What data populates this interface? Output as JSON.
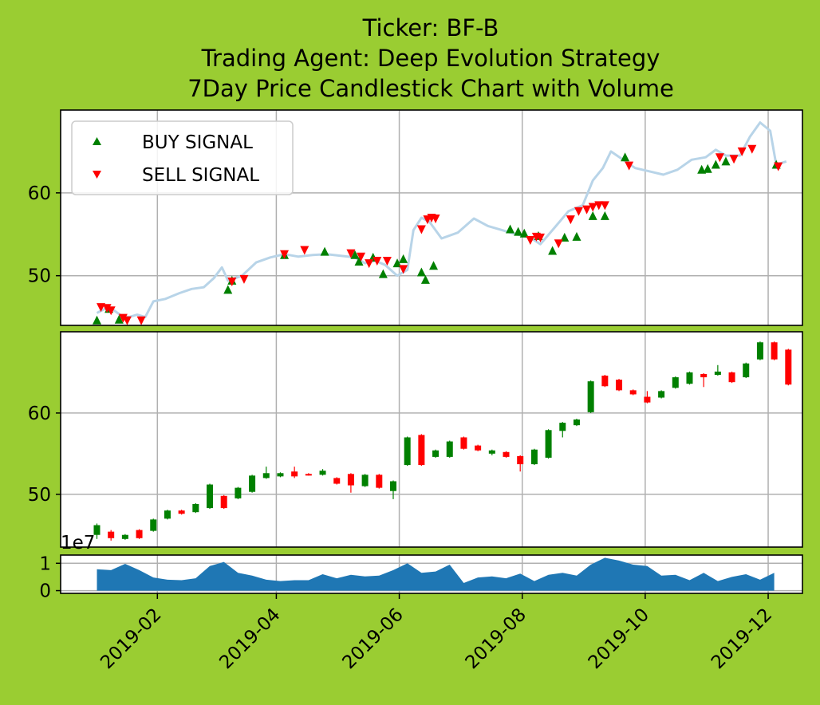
{
  "title_lines": [
    "Ticker: BF-B",
    "Trading Agent: Deep Evolution Strategy",
    "7Day Price Candlestick Chart with Volume"
  ],
  "legend": {
    "buy": "BUY SIGNAL",
    "sell": "SELL SIGNAL"
  },
  "volume_offset_label": "1e7",
  "colors": {
    "background": "#9acd32",
    "buy": "#008000",
    "sell": "#ff0000",
    "price_line": "#b8d4e8",
    "volume": "#1f77b4",
    "grid": "#b0b0b0"
  },
  "chart_data": {
    "type": "candlestick",
    "x_range": [
      "2018-12-15",
      "2019-12-18"
    ],
    "x_ticks": [
      "2019-02",
      "2019-04",
      "2019-06",
      "2019-08",
      "2019-10",
      "2019-12"
    ],
    "price_panel": {
      "ylim": [
        44,
        70
      ],
      "y_ticks": [
        50,
        60
      ],
      "price_line": [
        [
          "2019-01-02",
          45.5
        ],
        [
          "2019-01-06",
          46.0
        ],
        [
          "2019-01-10",
          45.9
        ],
        [
          "2019-01-14",
          45.2
        ],
        [
          "2019-01-18",
          45.0
        ],
        [
          "2019-01-22",
          45.3
        ],
        [
          "2019-01-26",
          45.0
        ],
        [
          "2019-01-30",
          46.9
        ],
        [
          "2019-02-05",
          47.2
        ],
        [
          "2019-02-12",
          47.9
        ],
        [
          "2019-02-18",
          48.4
        ],
        [
          "2019-02-24",
          48.6
        ],
        [
          "2019-03-01",
          49.7
        ],
        [
          "2019-03-05",
          51.0
        ],
        [
          "2019-03-08",
          49.4
        ],
        [
          "2019-03-15",
          50.0
        ],
        [
          "2019-03-22",
          51.6
        ],
        [
          "2019-03-29",
          52.2
        ],
        [
          "2019-04-05",
          52.6
        ],
        [
          "2019-04-12",
          52.3
        ],
        [
          "2019-04-19",
          52.5
        ],
        [
          "2019-04-26",
          52.6
        ],
        [
          "2019-05-03",
          52.4
        ],
        [
          "2019-05-10",
          52.2
        ],
        [
          "2019-05-15",
          51.5
        ],
        [
          "2019-05-20",
          51.8
        ],
        [
          "2019-05-25",
          51.3
        ],
        [
          "2019-05-31",
          50.0
        ],
        [
          "2019-06-05",
          50.7
        ],
        [
          "2019-06-08",
          55.5
        ],
        [
          "2019-06-12",
          57.0
        ],
        [
          "2019-06-16",
          56.5
        ],
        [
          "2019-06-22",
          54.5
        ],
        [
          "2019-06-30",
          55.2
        ],
        [
          "2019-07-08",
          56.9
        ],
        [
          "2019-07-15",
          56.0
        ],
        [
          "2019-07-22",
          55.5
        ],
        [
          "2019-07-29",
          55.0
        ],
        [
          "2019-08-05",
          54.6
        ],
        [
          "2019-08-10",
          53.8
        ],
        [
          "2019-08-17",
          55.8
        ],
        [
          "2019-08-24",
          57.8
        ],
        [
          "2019-08-31",
          58.5
        ],
        [
          "2019-09-05",
          61.5
        ],
        [
          "2019-09-10",
          63.0
        ],
        [
          "2019-09-14",
          65.0
        ],
        [
          "2019-09-20",
          64.0
        ],
        [
          "2019-09-26",
          63.0
        ],
        [
          "2019-10-03",
          62.6
        ],
        [
          "2019-10-10",
          62.2
        ],
        [
          "2019-10-17",
          62.8
        ],
        [
          "2019-10-24",
          64.0
        ],
        [
          "2019-10-31",
          64.3
        ],
        [
          "2019-11-05",
          65.2
        ],
        [
          "2019-11-10",
          64.5
        ],
        [
          "2019-11-17",
          64.5
        ],
        [
          "2019-11-22",
          66.8
        ],
        [
          "2019-11-27",
          68.5
        ],
        [
          "2019-12-02",
          67.5
        ],
        [
          "2019-12-05",
          63.4
        ],
        [
          "2019-12-10",
          63.8
        ]
      ],
      "buy_signals": [
        [
          "2019-01-02",
          44.6
        ],
        [
          "2019-01-08",
          46.0
        ],
        [
          "2019-01-13",
          44.7
        ],
        [
          "2019-03-08",
          48.3
        ],
        [
          "2019-03-10",
          49.4
        ],
        [
          "2019-04-05",
          52.5
        ],
        [
          "2019-04-25",
          52.9
        ],
        [
          "2019-05-10",
          52.5
        ],
        [
          "2019-05-12",
          51.7
        ],
        [
          "2019-05-19",
          52.2
        ],
        [
          "2019-05-24",
          50.2
        ],
        [
          "2019-05-31",
          51.5
        ],
        [
          "2019-06-03",
          52.0
        ],
        [
          "2019-06-12",
          50.4
        ],
        [
          "2019-06-14",
          49.5
        ],
        [
          "2019-06-18",
          51.2
        ],
        [
          "2019-07-26",
          55.6
        ],
        [
          "2019-07-30",
          55.3
        ],
        [
          "2019-08-02",
          55.1
        ],
        [
          "2019-08-09",
          54.8
        ],
        [
          "2019-08-16",
          53.0
        ],
        [
          "2019-08-22",
          54.6
        ],
        [
          "2019-08-28",
          54.7
        ],
        [
          "2019-09-05",
          57.2
        ],
        [
          "2019-09-11",
          57.2
        ],
        [
          "2019-09-21",
          64.3
        ],
        [
          "2019-10-29",
          62.8
        ],
        [
          "2019-11-01",
          62.9
        ],
        [
          "2019-11-05",
          63.4
        ],
        [
          "2019-11-10",
          63.8
        ],
        [
          "2019-12-05",
          63.4
        ]
      ],
      "sell_signals": [
        [
          "2019-01-04",
          46.2
        ],
        [
          "2019-01-07",
          46.1
        ],
        [
          "2019-01-09",
          45.8
        ],
        [
          "2019-01-15",
          44.9
        ],
        [
          "2019-01-17",
          44.6
        ],
        [
          "2019-01-24",
          44.6
        ],
        [
          "2019-03-10",
          49.3
        ],
        [
          "2019-03-16",
          49.6
        ],
        [
          "2019-04-05",
          52.6
        ],
        [
          "2019-04-15",
          53.1
        ],
        [
          "2019-05-08",
          52.7
        ],
        [
          "2019-05-13",
          52.3
        ],
        [
          "2019-05-17",
          51.5
        ],
        [
          "2019-05-21",
          51.8
        ],
        [
          "2019-05-26",
          51.8
        ],
        [
          "2019-06-03",
          50.8
        ],
        [
          "2019-06-12",
          55.6
        ],
        [
          "2019-06-15",
          56.8
        ],
        [
          "2019-06-17",
          57.0
        ],
        [
          "2019-06-19",
          56.9
        ],
        [
          "2019-08-05",
          54.3
        ],
        [
          "2019-08-08",
          54.7
        ],
        [
          "2019-08-10",
          54.6
        ],
        [
          "2019-08-19",
          53.9
        ],
        [
          "2019-08-25",
          56.8
        ],
        [
          "2019-08-29",
          57.8
        ],
        [
          "2019-09-02",
          58.0
        ],
        [
          "2019-09-05",
          58.3
        ],
        [
          "2019-09-08",
          58.5
        ],
        [
          "2019-09-11",
          58.5
        ],
        [
          "2019-09-23",
          63.3
        ],
        [
          "2019-11-07",
          64.3
        ],
        [
          "2019-11-14",
          64.1
        ],
        [
          "2019-11-18",
          65.0
        ],
        [
          "2019-11-23",
          65.3
        ],
        [
          "2019-12-06",
          63.2
        ]
      ]
    },
    "candle_panel": {
      "ylim": [
        43.5,
        70
      ],
      "y_ticks": [
        50,
        60
      ],
      "candles": [
        [
          "2019-01-02",
          45.0,
          46.2,
          44.5,
          46.4
        ],
        [
          "2019-01-09",
          45.4,
          44.6,
          44.3,
          45.6
        ],
        [
          "2019-01-16",
          44.5,
          45.0,
          44.4,
          45.1
        ],
        [
          "2019-01-23",
          45.6,
          44.6,
          44.5,
          45.7
        ],
        [
          "2019-01-30",
          45.5,
          46.9,
          45.4,
          47.0
        ],
        [
          "2019-02-06",
          47.0,
          48.0,
          46.9,
          48.1
        ],
        [
          "2019-02-13",
          48.0,
          47.6,
          47.5,
          48.1
        ],
        [
          "2019-02-20",
          47.8,
          48.8,
          47.7,
          48.9
        ],
        [
          "2019-02-27",
          48.3,
          51.2,
          48.2,
          51.3
        ],
        [
          "2019-03-06",
          49.8,
          48.3,
          48.2,
          49.9
        ],
        [
          "2019-03-13",
          49.5,
          50.8,
          49.4,
          50.9
        ],
        [
          "2019-03-20",
          50.3,
          52.3,
          50.2,
          52.4
        ],
        [
          "2019-03-27",
          52.0,
          52.6,
          51.9,
          53.4
        ],
        [
          "2019-04-03",
          52.2,
          52.6,
          52.1,
          52.7
        ],
        [
          "2019-04-10",
          52.8,
          52.2,
          52.0,
          53.4
        ],
        [
          "2019-04-17",
          52.5,
          52.4,
          52.3,
          52.6
        ],
        [
          "2019-04-24",
          52.4,
          52.9,
          52.3,
          53.1
        ],
        [
          "2019-05-01",
          52.0,
          51.3,
          51.2,
          52.1
        ],
        [
          "2019-05-08",
          52.5,
          51.1,
          50.2,
          52.6
        ],
        [
          "2019-05-15",
          51.0,
          52.4,
          50.9,
          52.5
        ],
        [
          "2019-05-22",
          52.4,
          50.8,
          50.7,
          52.5
        ],
        [
          "2019-05-29",
          50.4,
          51.6,
          49.4,
          51.7
        ],
        [
          "2019-06-05",
          53.6,
          57.0,
          53.5,
          57.1
        ],
        [
          "2019-06-12",
          57.3,
          53.6,
          53.5,
          57.4
        ],
        [
          "2019-06-19",
          54.6,
          55.4,
          54.5,
          55.5
        ],
        [
          "2019-06-26",
          54.6,
          56.5,
          54.5,
          56.6
        ],
        [
          "2019-07-03",
          57.0,
          55.6,
          55.5,
          57.1
        ],
        [
          "2019-07-10",
          56.0,
          55.4,
          55.3,
          56.1
        ],
        [
          "2019-07-17",
          55.0,
          55.4,
          54.8,
          55.5
        ],
        [
          "2019-07-24",
          55.2,
          54.6,
          54.5,
          55.3
        ],
        [
          "2019-07-31",
          54.7,
          53.7,
          52.8,
          54.8
        ],
        [
          "2019-08-07",
          53.7,
          55.5,
          53.6,
          55.6
        ],
        [
          "2019-08-14",
          54.5,
          57.9,
          54.4,
          58.0
        ],
        [
          "2019-08-21",
          57.8,
          58.8,
          57.0,
          58.9
        ],
        [
          "2019-08-28",
          58.5,
          59.2,
          58.4,
          59.3
        ],
        [
          "2019-09-04",
          60.1,
          63.9,
          60.0,
          64.0
        ],
        [
          "2019-09-11",
          64.6,
          63.3,
          63.2,
          64.7
        ],
        [
          "2019-09-18",
          64.1,
          62.8,
          62.7,
          64.2
        ],
        [
          "2019-09-25",
          62.8,
          62.3,
          62.2,
          62.9
        ],
        [
          "2019-10-02",
          62.0,
          61.3,
          61.2,
          62.7
        ],
        [
          "2019-10-09",
          61.9,
          62.7,
          61.8,
          62.8
        ],
        [
          "2019-10-16",
          63.1,
          64.4,
          63.0,
          64.5
        ],
        [
          "2019-10-23",
          63.6,
          65.0,
          63.5,
          65.1
        ],
        [
          "2019-10-30",
          64.8,
          64.4,
          63.2,
          64.9
        ],
        [
          "2019-11-06",
          64.7,
          65.1,
          64.6,
          65.9
        ],
        [
          "2019-11-13",
          65.0,
          63.8,
          63.7,
          65.1
        ],
        [
          "2019-11-20",
          64.4,
          66.1,
          64.3,
          66.2
        ],
        [
          "2019-11-27",
          66.6,
          68.7,
          66.5,
          68.8
        ],
        [
          "2019-12-04",
          68.7,
          66.6,
          66.5,
          68.8
        ],
        [
          "2019-12-11",
          67.8,
          63.5,
          63.4,
          67.9
        ]
      ]
    },
    "volume_panel": {
      "ylim": [
        -0.1,
        1.3
      ],
      "y_ticks": [
        0,
        1
      ],
      "unit_multiplier": "1e7",
      "values": [
        [
          "2019-01-02",
          0.78
        ],
        [
          "2019-01-09",
          0.75
        ],
        [
          "2019-01-16",
          0.98
        ],
        [
          "2019-01-23",
          0.75
        ],
        [
          "2019-01-30",
          0.48
        ],
        [
          "2019-02-06",
          0.4
        ],
        [
          "2019-02-13",
          0.38
        ],
        [
          "2019-02-20",
          0.45
        ],
        [
          "2019-02-27",
          0.9
        ],
        [
          "2019-03-06",
          1.05
        ],
        [
          "2019-03-13",
          0.65
        ],
        [
          "2019-03-20",
          0.55
        ],
        [
          "2019-03-27",
          0.4
        ],
        [
          "2019-04-03",
          0.35
        ],
        [
          "2019-04-10",
          0.38
        ],
        [
          "2019-04-17",
          0.38
        ],
        [
          "2019-04-24",
          0.6
        ],
        [
          "2019-05-01",
          0.45
        ],
        [
          "2019-05-08",
          0.58
        ],
        [
          "2019-05-15",
          0.52
        ],
        [
          "2019-05-22",
          0.55
        ],
        [
          "2019-05-29",
          0.75
        ],
        [
          "2019-06-05",
          1.0
        ],
        [
          "2019-06-12",
          0.65
        ],
        [
          "2019-06-19",
          0.7
        ],
        [
          "2019-06-26",
          0.95
        ],
        [
          "2019-07-03",
          0.28
        ],
        [
          "2019-07-10",
          0.48
        ],
        [
          "2019-07-17",
          0.52
        ],
        [
          "2019-07-24",
          0.45
        ],
        [
          "2019-07-31",
          0.62
        ],
        [
          "2019-08-07",
          0.35
        ],
        [
          "2019-08-14",
          0.58
        ],
        [
          "2019-08-21",
          0.65
        ],
        [
          "2019-08-28",
          0.55
        ],
        [
          "2019-09-04",
          0.95
        ],
        [
          "2019-09-11",
          1.2
        ],
        [
          "2019-09-18",
          1.1
        ],
        [
          "2019-09-25",
          0.95
        ],
        [
          "2019-10-02",
          0.9
        ],
        [
          "2019-10-09",
          0.55
        ],
        [
          "2019-10-16",
          0.58
        ],
        [
          "2019-10-23",
          0.38
        ],
        [
          "2019-10-30",
          0.65
        ],
        [
          "2019-11-06",
          0.35
        ],
        [
          "2019-11-13",
          0.5
        ],
        [
          "2019-11-20",
          0.6
        ],
        [
          "2019-11-27",
          0.4
        ],
        [
          "2019-12-04",
          0.65
        ]
      ]
    }
  }
}
